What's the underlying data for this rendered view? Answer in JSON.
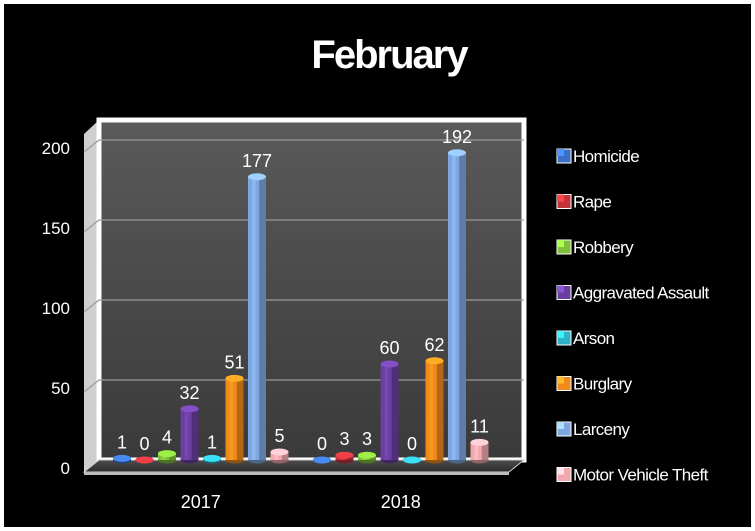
{
  "chart_data": {
    "type": "bar",
    "title": "February",
    "categories": [
      "2017",
      "2018"
    ],
    "ylim": [
      0,
      200
    ],
    "yticks": [
      0,
      50,
      100,
      150,
      200
    ],
    "grid": true,
    "legend_position": "right",
    "series": [
      {
        "name": "Homicide",
        "color": "#3a6fc4",
        "values": [
          1,
          0
        ]
      },
      {
        "name": "Rape",
        "color": "#c0343a",
        "values": [
          0,
          3
        ]
      },
      {
        "name": "Robbery",
        "color": "#7fbf3a",
        "values": [
          4,
          3
        ]
      },
      {
        "name": "Aggravated Assault",
        "color": "#6a3fa0",
        "values": [
          32,
          60
        ]
      },
      {
        "name": "Arson",
        "color": "#2fb3c6",
        "values": [
          1,
          0
        ]
      },
      {
        "name": "Burglary",
        "color": "#f08a1c",
        "values": [
          51,
          62
        ]
      },
      {
        "name": "Larceny",
        "color": "#7fa6e0",
        "values": [
          177,
          192
        ]
      },
      {
        "name": "Motor Vehicle Theft",
        "color": "#f0a8ae",
        "values": [
          5,
          11
        ]
      }
    ]
  }
}
